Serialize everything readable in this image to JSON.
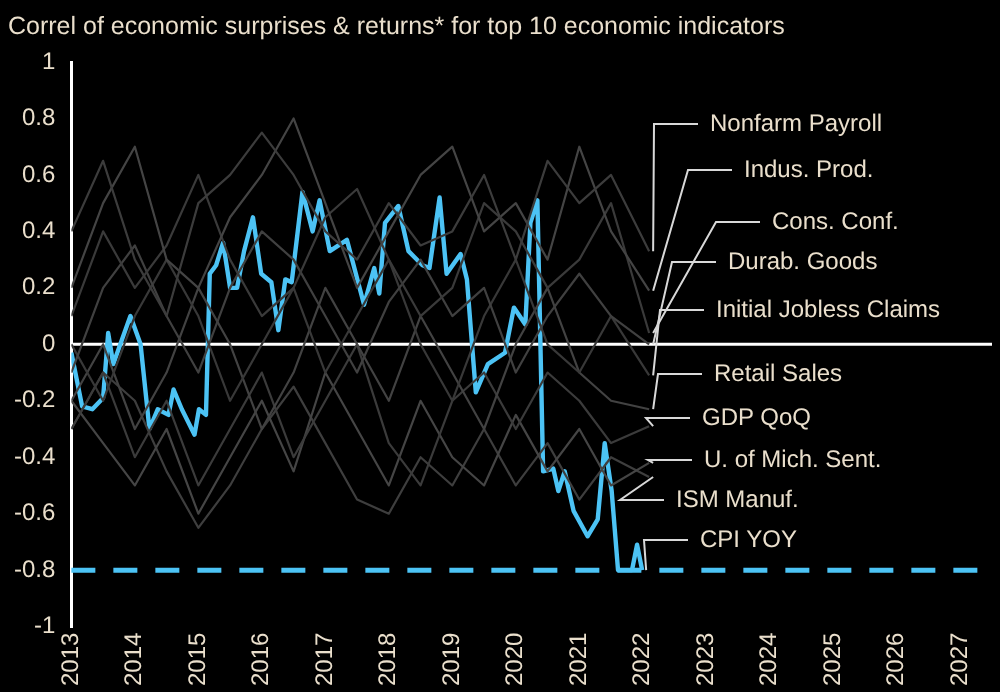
{
  "chart_data": {
    "type": "line",
    "title": "Correl of economic surprises & returns* for top 10 economic indicators",
    "xlim": [
      2013,
      2027.5
    ],
    "xticks": [
      2013,
      2014,
      2015,
      2016,
      2017,
      2018,
      2019,
      2020,
      2021,
      2022,
      2023,
      2024,
      2025,
      2026,
      2027
    ],
    "ylim": [
      -1,
      1
    ],
    "yticks": [
      1,
      0.8,
      0.6,
      0.4,
      0.2,
      0,
      -0.2,
      -0.4,
      -0.6,
      -0.8,
      -1
    ],
    "grid": false,
    "legend": false,
    "marker": "none",
    "x": [
      2013,
      2013.5,
      2014,
      2014.5,
      2015,
      2015.5,
      2016,
      2016.5,
      2017,
      2017.5,
      2018,
      2018.5,
      2019,
      2019.5,
      2020,
      2020.5,
      2021,
      2021.5,
      2022.1
    ],
    "ref_lines": [
      {
        "axis": "y",
        "value": 0,
        "color": "#ffffff",
        "line_style": "solid"
      },
      {
        "axis": "y",
        "value": -0.8,
        "color": "#4cc3f5",
        "line_style": "dashed"
      }
    ],
    "series": [
      {
        "name": "Nonfarm Payroll",
        "color": "#3c3c3c",
        "values": [
          0.4,
          0.65,
          0.3,
          0.1,
          0.5,
          0.6,
          0.75,
          0.6,
          0.4,
          0.3,
          0.5,
          0.35,
          0.4,
          0.6,
          0.3,
          0.65,
          0.5,
          0.6,
          0.33
        ]
      },
      {
        "name": "Indus. Prod.",
        "color": "#444444",
        "values": [
          0.2,
          0.5,
          0.7,
          0.3,
          0.2,
          0.45,
          0.6,
          0.8,
          0.5,
          0.2,
          0.4,
          0.6,
          0.7,
          0.4,
          0.5,
          0.3,
          0.7,
          0.4,
          0.19
        ]
      },
      {
        "name": "Cons. Conf.",
        "color": "#3a3a3a",
        "values": [
          0.1,
          0.4,
          0.2,
          0.35,
          0.6,
          0.3,
          0.1,
          0.2,
          0.45,
          0.55,
          0.3,
          0.1,
          0.2,
          0.5,
          0.4,
          0.2,
          0.3,
          0.5,
          0.04
        ]
      },
      {
        "name": "Durab. Goods",
        "color": "#404040",
        "values": [
          -0.1,
          0.2,
          0.35,
          0.1,
          -0.1,
          0.2,
          0.4,
          0.3,
          0.1,
          -0.1,
          0.15,
          0.3,
          0.1,
          0.2,
          -0.1,
          0.1,
          0.25,
          0.1,
          0.0
        ]
      },
      {
        "name": "Initial Jobless Claims",
        "color": "#383838",
        "values": [
          0.0,
          -0.2,
          0.1,
          0.3,
          0.1,
          -0.2,
          0.0,
          0.2,
          -0.1,
          0.1,
          0.3,
          0.0,
          -0.2,
          0.1,
          0.3,
          0.0,
          -0.1,
          0.1,
          -0.11
        ]
      },
      {
        "name": "Retail Sales",
        "color": "#424242",
        "values": [
          -0.2,
          0.0,
          -0.3,
          -0.1,
          0.2,
          0.0,
          -0.3,
          -0.1,
          0.2,
          0.0,
          -0.2,
          0.1,
          -0.1,
          -0.3,
          0.0,
          0.2,
          -0.1,
          -0.2,
          -0.23
        ]
      },
      {
        "name": "GDP QoQ",
        "color": "#3b3b3b",
        "values": [
          -0.3,
          -0.1,
          -0.4,
          -0.2,
          -0.5,
          -0.3,
          -0.1,
          -0.4,
          -0.2,
          0.0,
          -0.35,
          -0.5,
          -0.2,
          -0.1,
          -0.3,
          -0.1,
          -0.2,
          -0.35,
          -0.29
        ]
      },
      {
        "name": "U. of Mich. Sent.",
        "color": "#454545",
        "values": [
          -0.2,
          -0.35,
          -0.5,
          -0.3,
          -0.6,
          -0.4,
          -0.2,
          -0.45,
          -0.1,
          -0.3,
          -0.5,
          -0.2,
          -0.4,
          -0.5,
          -0.25,
          -0.45,
          -0.3,
          -0.5,
          -0.42
        ]
      },
      {
        "name": "ISM Manuf.",
        "color": "#3e3e3e",
        "values": [
          -0.3,
          -0.1,
          -0.2,
          -0.45,
          -0.65,
          -0.5,
          -0.3,
          -0.15,
          -0.35,
          -0.55,
          -0.6,
          -0.4,
          -0.5,
          -0.3,
          -0.5,
          -0.35,
          -0.55,
          -0.4,
          -0.47
        ]
      },
      {
        "name": "CPI YOY",
        "color": "#4cc3f5",
        "x": [
          2013,
          2013.17,
          2013.33,
          2013.5,
          2013.58,
          2013.66,
          2013.93,
          2014.09,
          2014.23,
          2014.36,
          2014.53,
          2014.61,
          2014.74,
          2014.94,
          2015.01,
          2015.12,
          2015.18,
          2015.28,
          2015.39,
          2015.5,
          2015.61,
          2015.72,
          2015.86,
          2015.99,
          2016.15,
          2016.26,
          2016.37,
          2016.47,
          2016.64,
          2016.8,
          2016.91,
          2017.07,
          2017.34,
          2017.61,
          2017.77,
          2017.85,
          2017.94,
          2018.15,
          2018.31,
          2018.53,
          2018.64,
          2018.8,
          2018.91,
          2019.13,
          2019.23,
          2019.37,
          2019.56,
          2019.83,
          2019.97,
          2020.15,
          2020.23,
          2020.34,
          2020.43,
          2020.59,
          2020.67,
          2020.77,
          2020.91,
          2021.13,
          2021.29,
          2021.4,
          2021.51,
          2021.61,
          2021.83,
          2021.91,
          2021.99
        ],
        "values": [
          -0.03,
          -0.22,
          -0.23,
          -0.19,
          0.04,
          -0.07,
          0.1,
          0.0,
          -0.3,
          -0.23,
          -0.25,
          -0.16,
          -0.23,
          -0.32,
          -0.23,
          -0.25,
          0.25,
          0.28,
          0.36,
          0.2,
          0.2,
          0.33,
          0.45,
          0.25,
          0.22,
          0.05,
          0.23,
          0.22,
          0.54,
          0.4,
          0.51,
          0.33,
          0.37,
          0.14,
          0.27,
          0.18,
          0.43,
          0.49,
          0.33,
          0.28,
          0.27,
          0.52,
          0.25,
          0.32,
          0.23,
          -0.17,
          -0.07,
          -0.03,
          0.13,
          0.07,
          0.43,
          0.51,
          -0.45,
          -0.44,
          -0.52,
          -0.45,
          -0.59,
          -0.68,
          -0.62,
          -0.35,
          -0.52,
          -0.8,
          -0.8,
          -0.71,
          -0.8
        ]
      }
    ]
  }
}
